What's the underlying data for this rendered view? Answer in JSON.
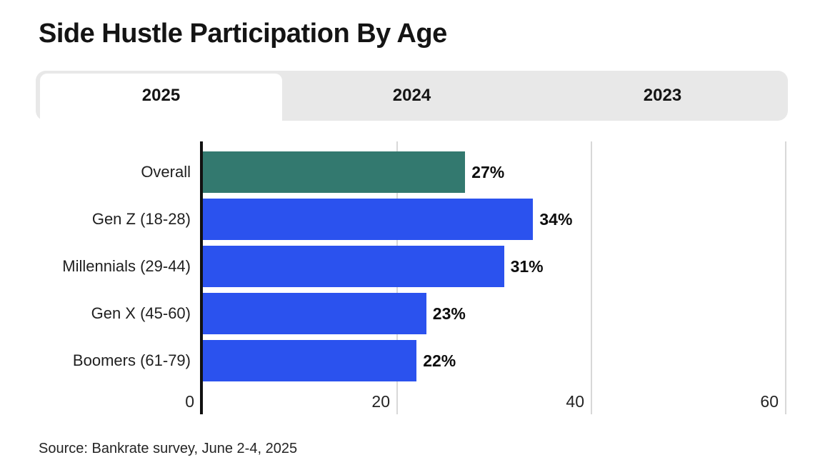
{
  "page": {
    "title": "Side Hustle Participation By Age",
    "source": "Source: Bankrate survey, June 2-4, 2025"
  },
  "tabs": {
    "items": [
      {
        "label": "2025",
        "active": true
      },
      {
        "label": "2024",
        "active": false
      },
      {
        "label": "2023",
        "active": false
      }
    ]
  },
  "chart_data": {
    "type": "bar",
    "orientation": "horizontal",
    "title": "Side Hustle Participation By Age",
    "categories": [
      "Overall",
      "Gen Z (18-28)",
      "Millennials (29-44)",
      "Gen X (45-60)",
      "Boomers (61-79)"
    ],
    "values": [
      27,
      34,
      31,
      23,
      22
    ],
    "value_labels": [
      "27%",
      "34%",
      "31%",
      "23%",
      "22%"
    ],
    "bar_colors": [
      "#33796F",
      "#2B52EE",
      "#2B52EE",
      "#2B52EE",
      "#2B52EE"
    ],
    "xlim": [
      0,
      60
    ],
    "xticks": [
      0,
      20,
      40,
      60
    ],
    "grid": "vertical",
    "legend": "none"
  },
  "colors": {
    "accent_teal": "#33796F",
    "accent_blue": "#2B52EE",
    "tab_bar_bg": "#E8E8E8",
    "gridline": "#D8D8D8",
    "axis": "#111111",
    "text": "#1A1A1A"
  }
}
